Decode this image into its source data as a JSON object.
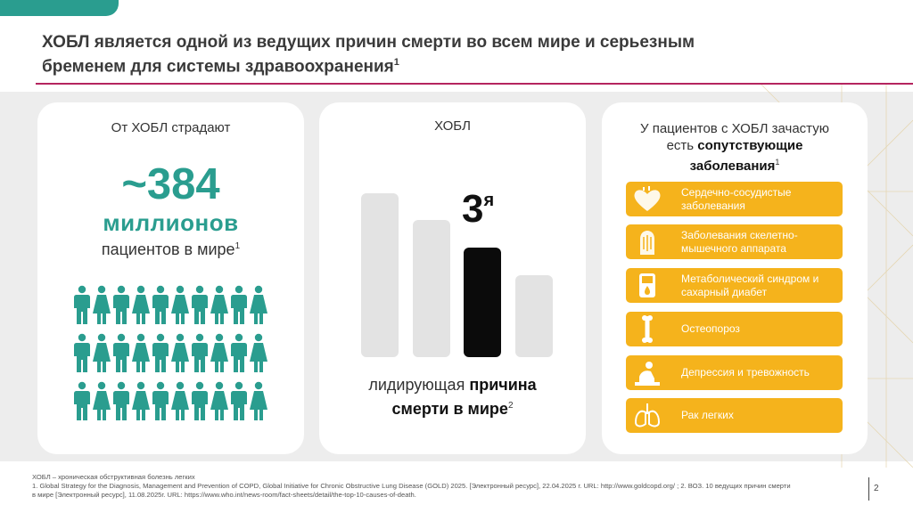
{
  "slide": {
    "title_line1": "ХОБЛ является одной из ведущих причин смерти во всем мире и серьезным",
    "title_line2": "бременем для системы здравоохранения",
    "title_sup": "1"
  },
  "card_prevalence": {
    "heading": "От ХОБЛ страдают",
    "number": "~384",
    "unit": "миллионов",
    "caption": "пациентов в мире",
    "caption_sup": "1",
    "icon_rows": 3,
    "icon_cols": 10
  },
  "card_mortality": {
    "heading": "ХОБЛ",
    "rank": "3",
    "rank_suffix": "я",
    "caption_pre": "лидирующая ",
    "caption_bold1": "причина",
    "caption_bold2": "смерти в мире",
    "caption_sup": "2"
  },
  "card_comorbid": {
    "heading_line1": "У пациентов с ХОБЛ зачастую",
    "heading_pre": "есть ",
    "heading_bold1": "сопутствующие",
    "heading_bold2": "заболевания",
    "heading_sup": "1",
    "items": [
      {
        "label": "Сердечно-сосудистые заболевания",
        "icon": "heart-icon"
      },
      {
        "label": "Заболевания скелетно-мышечного аппарата",
        "icon": "muscle-icon"
      },
      {
        "label": "Метаболический синдром и сахарный диабет",
        "icon": "glucometer-icon"
      },
      {
        "label": "Остеопороз",
        "icon": "bone-icon"
      },
      {
        "label": "Депрессия и тревожность",
        "icon": "depression-icon"
      },
      {
        "label": "Рак легких",
        "icon": "lungs-icon"
      }
    ]
  },
  "footer": {
    "line1": "ХОБЛ – хроническая обструктивная болезнь легких",
    "line2": "1. Global Strategy for the Diagnosis, Management and Prevention of COPD, Global Initiative for Chronic Obstructive Lung Disease (GOLD) 2025. [Электронный ресурс], 22.04.2025 г. URL: http://www.goldcopd.org/ ; 2. ВОЗ. 10 ведущих причин смерти",
    "line3": "в мире [Электронный ресурс], 11.08.2025г. URL: https://www.who.int/news-room/fact-sheets/detail/the-top-10-causes-of-death.",
    "page": "2"
  },
  "colors": {
    "teal": "#2a9d8f",
    "amber": "#f5b31c",
    "magenta": "#b5255f"
  }
}
